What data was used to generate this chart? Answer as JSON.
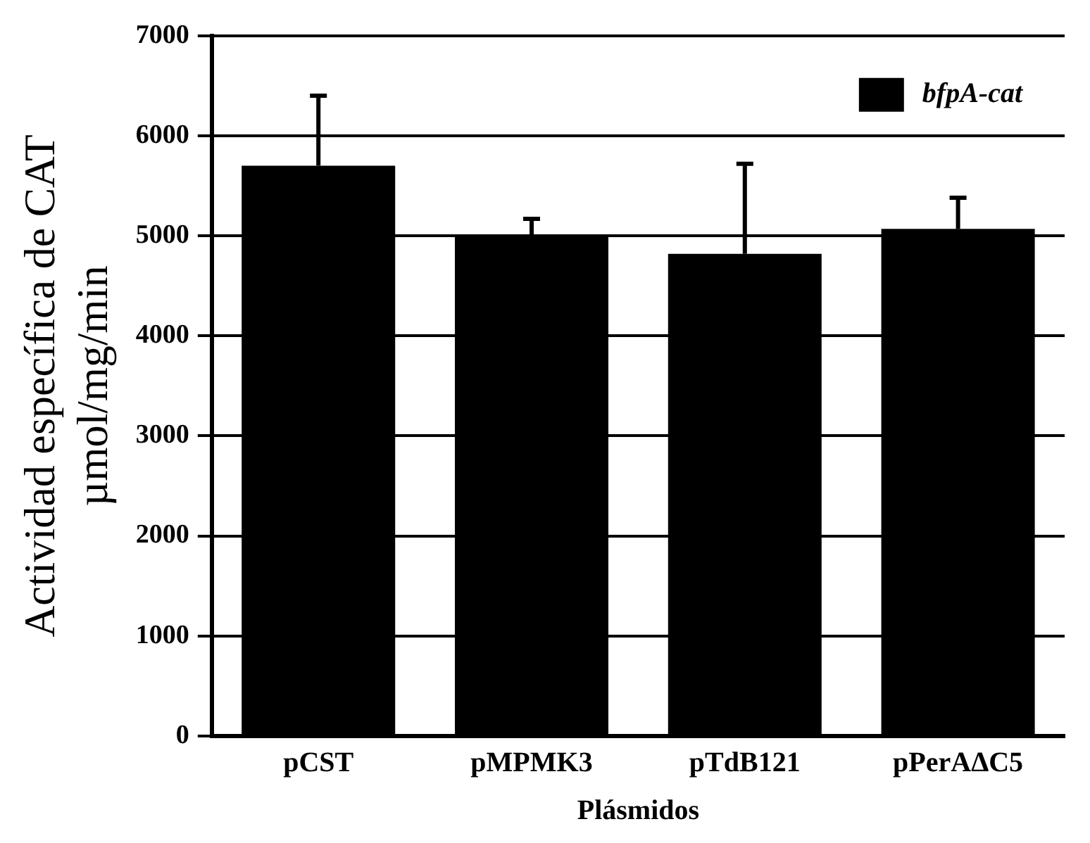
{
  "chart_data": {
    "type": "bar",
    "xlabel": "Plásmidos",
    "ylabel": "Actividad específica de CAT\nµmol/mg/min",
    "categories": [
      "pCST",
      "pMPMK3",
      "pTdB121",
      "pPerAΔC5"
    ],
    "series": [
      {
        "name": "bfpA-cat",
        "color": "#000000",
        "values": [
          5700,
          5000,
          4820,
          5070
        ],
        "errors": [
          [
            5700,
            6400
          ],
          [
            5000,
            5170
          ],
          [
            4820,
            5720
          ],
          [
            5070,
            5380
          ]
        ]
      }
    ],
    "ylim": [
      0,
      7000
    ],
    "yticks": [
      0,
      1000,
      2000,
      3000,
      4000,
      5000,
      6000,
      7000
    ],
    "grid": "y",
    "legend": "top right"
  }
}
